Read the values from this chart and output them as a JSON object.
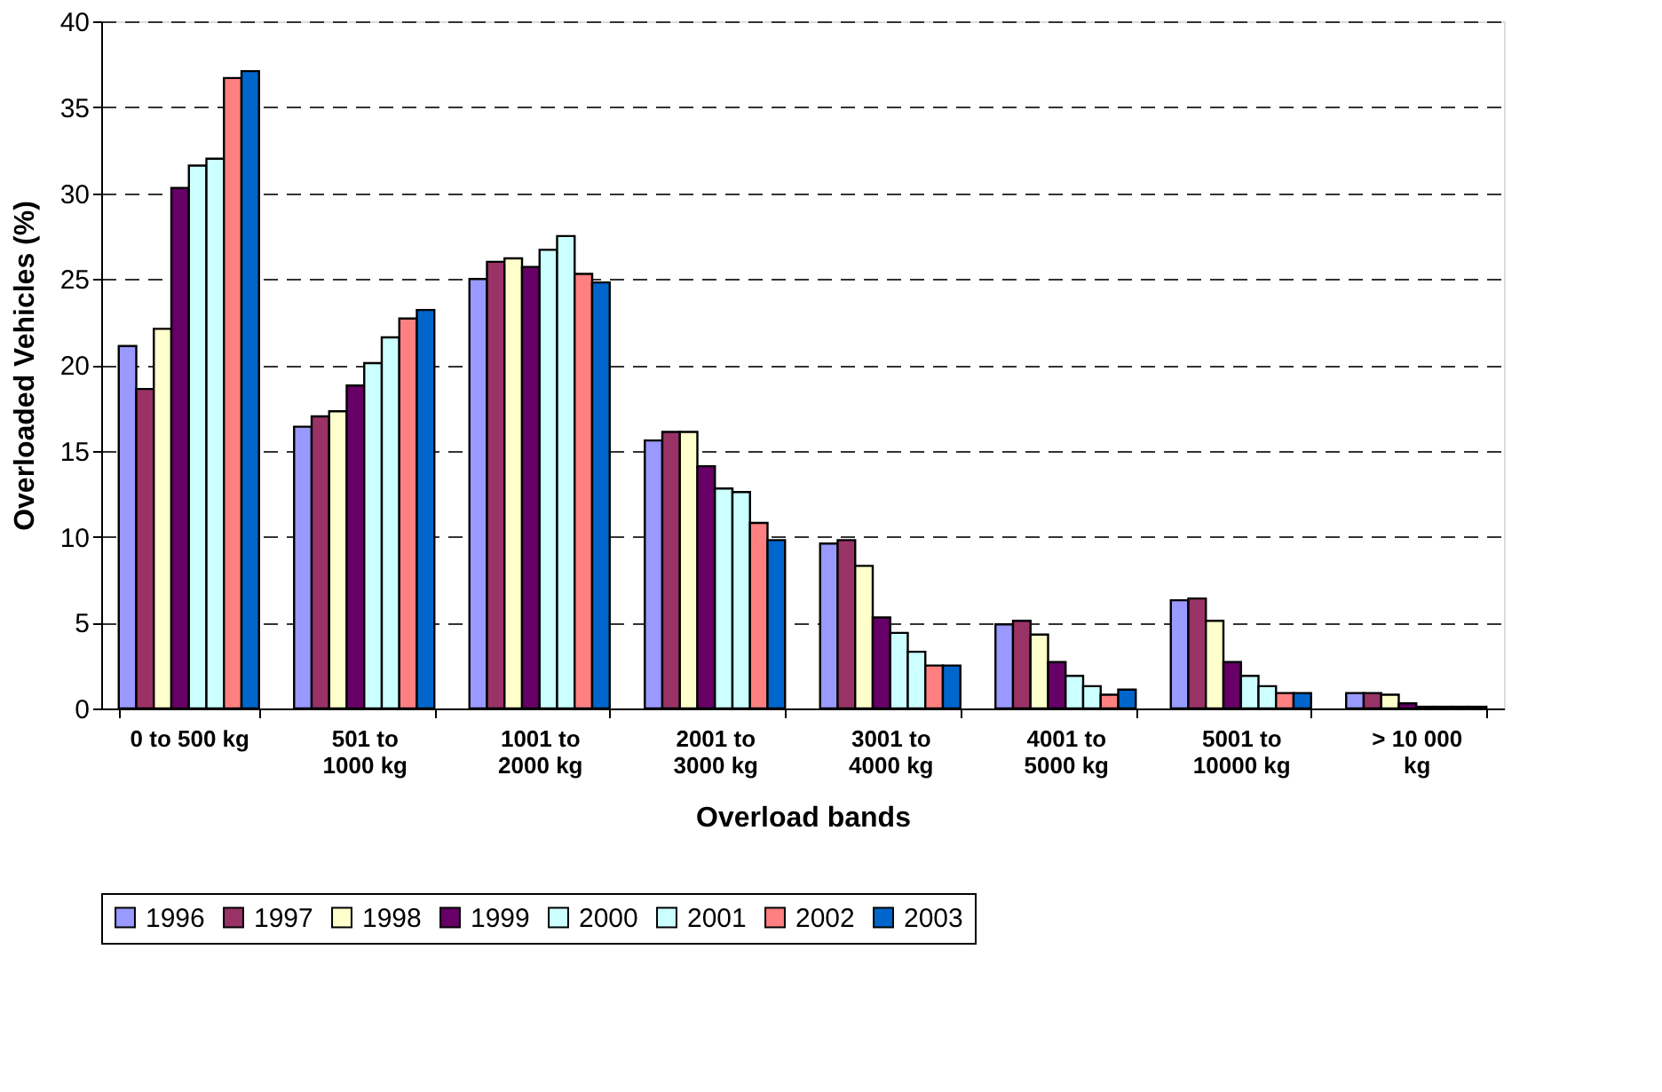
{
  "chart_data": {
    "type": "bar",
    "xlabel": "Overload bands",
    "ylabel": "Overloaded Vehicles (%)",
    "categories": [
      "0 to 500 kg",
      "501 to\n1000 kg",
      "1001 to\n2000 kg",
      "2001 to\n3000 kg",
      "3001 to\n4000 kg",
      "4001 to\n5000 kg",
      "5001 to\n10000 kg",
      "> 10 000\nkg"
    ],
    "series": [
      {
        "name": "1996",
        "color": "#9999ff",
        "values": [
          21.1,
          16.4,
          25,
          15.6,
          9.6,
          4.9,
          6.3,
          0.9
        ]
      },
      {
        "name": "1997",
        "color": "#993366",
        "values": [
          18.6,
          17,
          26,
          16.1,
          9.8,
          5.1,
          6.4,
          0.9
        ]
      },
      {
        "name": "1998",
        "color": "#ffffcc",
        "values": [
          22.1,
          17.3,
          26.2,
          16.1,
          8.3,
          4.3,
          5.1,
          0.8
        ]
      },
      {
        "name": "1999",
        "color": "#660066",
        "values": [
          30.3,
          18.8,
          25.7,
          14.1,
          5.3,
          2.7,
          2.7,
          0.3
        ]
      },
      {
        "name": "2000",
        "color": "#ccffff",
        "values": [
          31.6,
          20.1,
          26.7,
          12.8,
          4.4,
          1.9,
          1.9,
          0.1
        ]
      },
      {
        "name": "2001",
        "color": "#ccffff",
        "values": [
          32,
          21.6,
          27.5,
          12.6,
          3.3,
          1.3,
          1.3,
          0.1
        ]
      },
      {
        "name": "2002",
        "color": "#ff8080",
        "values": [
          36.7,
          22.7,
          25.3,
          10.8,
          2.5,
          0.8,
          0.9,
          0.1
        ]
      },
      {
        "name": "2003",
        "color": "#0066cc",
        "values": [
          37.1,
          23.2,
          24.8,
          9.8,
          2.5,
          1.1,
          0.9,
          0.1
        ]
      }
    ],
    "ylim": [
      0,
      40
    ],
    "yticks": [
      0,
      5,
      10,
      15,
      20,
      25,
      30,
      35,
      40
    ],
    "grid": "y",
    "legend": "bottom"
  }
}
